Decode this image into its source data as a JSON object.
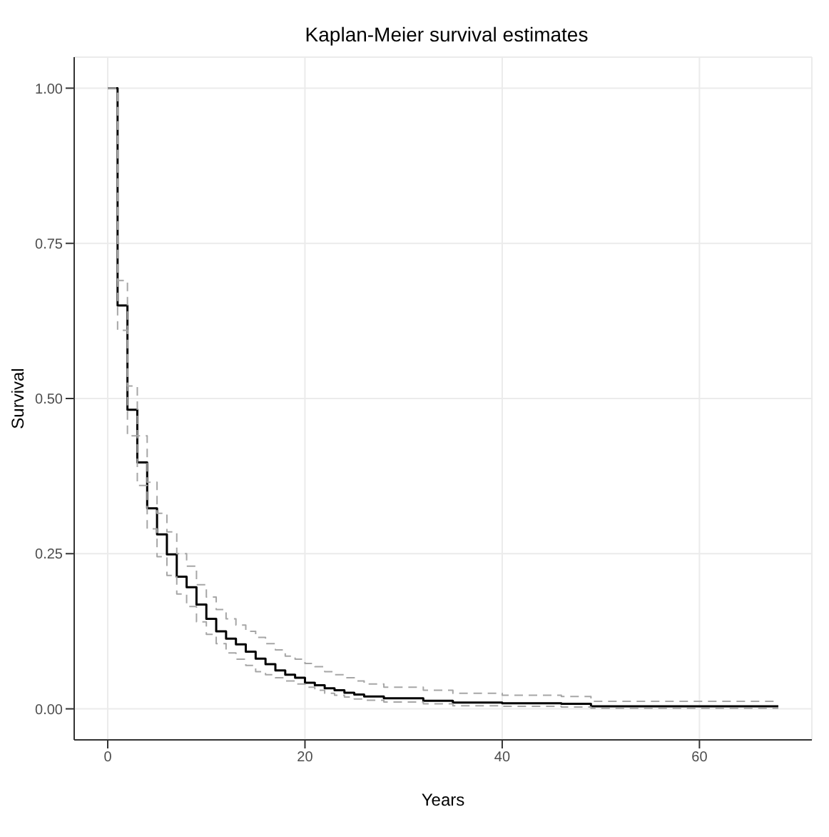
{
  "chart_data": {
    "type": "step",
    "title": "Kaplan-Meier survival estimates",
    "xlabel": "Years",
    "ylabel": "Survival",
    "x": [
      0,
      1,
      2,
      3,
      4,
      5,
      6,
      7,
      8,
      9,
      10,
      11,
      12,
      13,
      14,
      15,
      16,
      17,
      18,
      19,
      20,
      21,
      22,
      23,
      24,
      25,
      26,
      28,
      32,
      35,
      40,
      46,
      49,
      68
    ],
    "series": [
      {
        "color": "#000000",
        "line_style": "solid",
        "values": [
          1,
          0.65,
          0.482,
          0.397,
          0.323,
          0.281,
          0.249,
          0.213,
          0.196,
          0.168,
          0.145,
          0.125,
          0.113,
          0.104,
          0.092,
          0.081,
          0.072,
          0.062,
          0.055,
          0.05,
          0.042,
          0.038,
          0.033,
          0.03,
          0.026,
          0.023,
          0.02,
          0.017,
          0.013,
          0.01,
          0.009,
          0.008,
          0.004,
          0.004
        ]
      },
      {
        "color": "#a6a6a6",
        "line_style": "dashed",
        "values": [
          1,
          0.69,
          0.52,
          0.44,
          0.365,
          0.315,
          0.285,
          0.25,
          0.23,
          0.2,
          0.18,
          0.16,
          0.145,
          0.135,
          0.125,
          0.115,
          0.105,
          0.095,
          0.085,
          0.08,
          0.073,
          0.068,
          0.06,
          0.055,
          0.05,
          0.045,
          0.04,
          0.035,
          0.03,
          0.025,
          0.022,
          0.02,
          0.012,
          0.012
        ]
      },
      {
        "color": "#a6a6a6",
        "line_style": "dashed",
        "values": [
          1,
          0.61,
          0.44,
          0.36,
          0.29,
          0.245,
          0.215,
          0.185,
          0.165,
          0.14,
          0.12,
          0.105,
          0.09,
          0.08,
          0.07,
          0.06,
          0.055,
          0.05,
          0.045,
          0.04,
          0.035,
          0.03,
          0.025,
          0.022,
          0.019,
          0.016,
          0.014,
          0.011,
          0.008,
          0.005,
          0.004,
          0.003,
          0.001,
          0.001
        ]
      }
    ],
    "xlim": [
      -3.4,
      71.4
    ],
    "xticks": [
      0,
      20,
      40,
      60
    ],
    "ylim": [
      -0.05,
      1.05
    ],
    "yticks": [
      {
        "value": 0,
        "label": "0.00"
      },
      {
        "value": 0.25,
        "label": "0.25"
      },
      {
        "value": 0.5,
        "label": "0.50"
      },
      {
        "value": 0.75,
        "label": "0.75"
      },
      {
        "value": 1,
        "label": "1.00"
      }
    ],
    "grid": true,
    "legend": false,
    "marker": "none"
  }
}
